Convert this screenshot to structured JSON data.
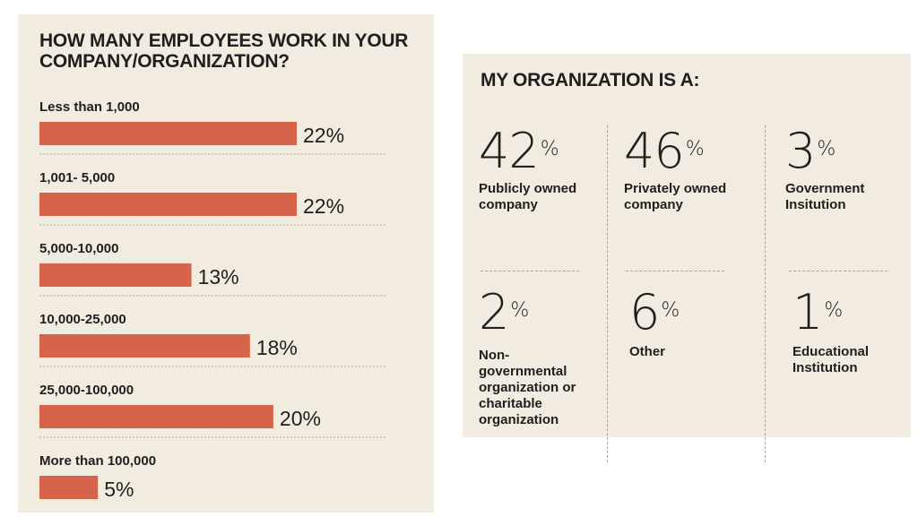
{
  "chart_data": [
    {
      "type": "bar",
      "orientation": "horizontal",
      "title": "HOW MANY EMPLOYEES WORK IN YOUR COMPANY/ORGANIZATION?",
      "categories": [
        "Less than 1,000",
        "1,001- 5,000",
        "5,000-10,000",
        "10,000-25,000",
        "25,000-100,000",
        "More than 100,000"
      ],
      "values": [
        22,
        22,
        13,
        18,
        20,
        5
      ],
      "value_labels": [
        "22%",
        "22%",
        "13%",
        "18%",
        "20%",
        "5%"
      ],
      "unit": "%",
      "xlim": [
        0,
        22
      ],
      "color": "#d5644b"
    },
    {
      "type": "table",
      "title": "MY ORGANIZATION IS A:",
      "items": [
        {
          "value": "42",
          "unit": "%",
          "label": "Publicly owned company"
        },
        {
          "value": "46",
          "unit": "%",
          "label": "Privately owned company"
        },
        {
          "value": "3",
          "unit": "%",
          "label": "Government Insitution"
        },
        {
          "value": "2",
          "unit": "%",
          "label": "Non-governmental organization or charitable organization"
        },
        {
          "value": "6",
          "unit": "%",
          "label": "Other"
        },
        {
          "value": "1",
          "unit": "%",
          "label": "Educational Institution"
        }
      ]
    }
  ],
  "colors": {
    "panel_bg": "#f1ebe0",
    "bar": "#d5644b",
    "text": "#1f1f1f",
    "divider": "#a9a49b"
  }
}
